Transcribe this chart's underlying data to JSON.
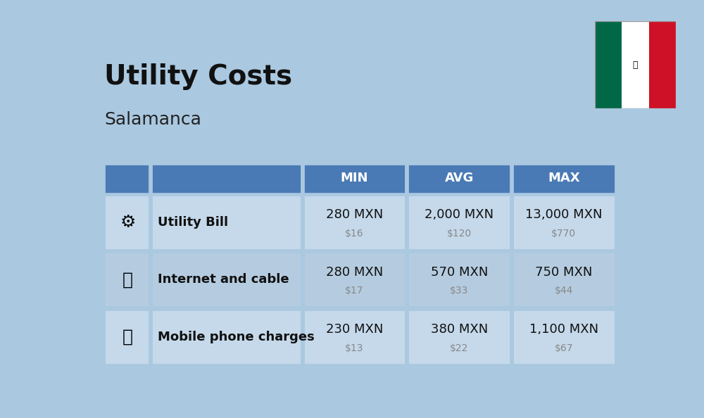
{
  "title": "Utility Costs",
  "subtitle": "Salamanca",
  "background_color": "#aac8e0",
  "header_bg_color": "#4a7ab5",
  "header_text_color": "#ffffff",
  "row_bg_color_1": "#c5d9eb",
  "row_bg_color_2": "#b5cce0",
  "table_border_color": "#aac8e0",
  "col_headers": [
    "MIN",
    "AVG",
    "MAX"
  ],
  "rows": [
    {
      "label": "Utility Bill",
      "min_mxn": "280 MXN",
      "min_usd": "$16",
      "avg_mxn": "2,000 MXN",
      "avg_usd": "$120",
      "max_mxn": "13,000 MXN",
      "max_usd": "$770"
    },
    {
      "label": "Internet and cable",
      "min_mxn": "280 MXN",
      "min_usd": "$17",
      "avg_mxn": "570 MXN",
      "avg_usd": "$33",
      "max_mxn": "750 MXN",
      "max_usd": "$44"
    },
    {
      "label": "Mobile phone charges",
      "min_mxn": "230 MXN",
      "min_usd": "$13",
      "avg_mxn": "380 MXN",
      "avg_usd": "$22",
      "max_mxn": "1,100 MXN",
      "max_usd": "$67"
    }
  ],
  "flag_colors": [
    "#006847",
    "#ffffff",
    "#ce1126"
  ],
  "title_fontsize": 28,
  "subtitle_fontsize": 18,
  "header_fontsize": 13,
  "label_fontsize": 13,
  "value_fontsize": 13,
  "subvalue_fontsize": 10
}
